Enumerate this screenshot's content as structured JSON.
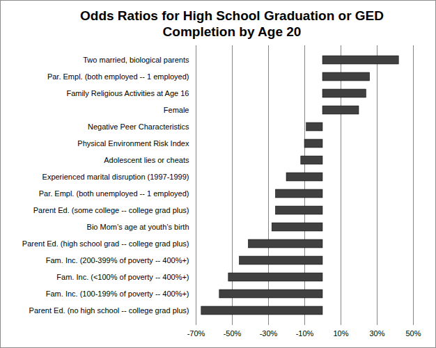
{
  "chart_data": {
    "type": "bar",
    "orientation": "horizontal",
    "title": "Odds Ratios for High School Graduation or GED\nCompletion by Age 20",
    "categories": [
      "Two married, biological parents",
      "Par. Empl. (both employed -- 1 employed)",
      "Family Religious Activities at Age 16",
      "Female",
      "Negative Peer Characteristics",
      "Physical Environment Risk Index",
      "Adolescent lies or cheats",
      "Experienced marital disruption (1997-1999)",
      "Par. Empl. (both unemployed -- 1 employed)",
      "Parent Ed. (some college -- college grad plus)",
      "Bio Mom’s age at youth’s birth",
      "Parent Ed. (high school grad -- college grad plus)",
      "Fam. Inc. (200-399% of poverty -- 400%+)",
      "Fam. Inc. (<100% of poverty -- 400%+)",
      "Fam. Inc. (100-199% of poverty -- 400%+)",
      "Parent Ed. (no high school -- college grad plus)"
    ],
    "values": [
      42,
      26,
      24,
      20,
      -9,
      -10,
      -12,
      -20,
      -26,
      -26,
      -28,
      -41,
      -46,
      -52,
      -57,
      -67
    ],
    "color": "#404040",
    "xlim": [
      -70,
      50
    ],
    "xticks": [
      {
        "value": -70,
        "label": "-70%"
      },
      {
        "value": -50,
        "label": "-50%"
      },
      {
        "value": -30,
        "label": "-30%"
      },
      {
        "value": -10,
        "label": "-10%"
      },
      {
        "value": 10,
        "label": "10%"
      },
      {
        "value": 30,
        "label": "30%"
      },
      {
        "value": 50,
        "label": "50%"
      }
    ],
    "grid": true
  }
}
